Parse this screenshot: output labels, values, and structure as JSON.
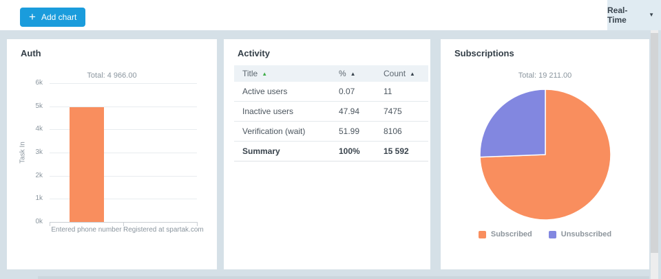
{
  "topbar": {
    "add_chart_label": "Add chart",
    "realtime_label": "Real-Time"
  },
  "auth": {
    "title": "Auth",
    "total_label": "Total: 4 966.00"
  },
  "activity": {
    "title": "Activity"
  },
  "subscriptions": {
    "title": "Subscriptions",
    "total_label": "Total: 19 211.00"
  },
  "colors": {
    "accent_blue": "#1a9cdc",
    "bar_orange": "#f98e5e",
    "pie_purple": "#8287e0",
    "page_background": "#d5e0e7"
  },
  "chart_data": [
    {
      "id": "auth",
      "type": "bar",
      "title": "Total: 4 966.00",
      "total": 4966.0,
      "categories": [
        "Entered phone number",
        "Registered at spartak.com"
      ],
      "values": [
        4966,
        0
      ],
      "xlabel": "",
      "ylabel": "Task In",
      "ylim": [
        0,
        6000
      ],
      "yticks": [
        "0k",
        "1k",
        "2k",
        "3k",
        "4k",
        "5k",
        "6k"
      ],
      "grid": true,
      "bar_color": "#f98e5e"
    },
    {
      "id": "activity",
      "type": "table",
      "columns": [
        {
          "label": "Title",
          "sort_arrow": "green"
        },
        {
          "label": "%",
          "sort_arrow": "dark"
        },
        {
          "label": "Count",
          "sort_arrow": "dark"
        }
      ],
      "rows": [
        {
          "title": "Active users",
          "percent": "0.07",
          "count": "11"
        },
        {
          "title": "Inactive users",
          "percent": "47.94",
          "count": "7475"
        },
        {
          "title": "Verification (wait)",
          "percent": "51.99",
          "count": "8106"
        }
      ],
      "summary_row": {
        "title": "Summary",
        "percent": "100%",
        "count": "15 592"
      }
    },
    {
      "id": "subscriptions",
      "type": "pie",
      "title": "Total: 19 211.00",
      "total": 19211.0,
      "legend_position": "bottom",
      "slices": [
        {
          "label": "Subscribed",
          "percent": 74.4,
          "color": "#f98e5e"
        },
        {
          "label": "Unsubscribed",
          "percent": 25.6,
          "color": "#8287e0"
        }
      ]
    }
  ]
}
